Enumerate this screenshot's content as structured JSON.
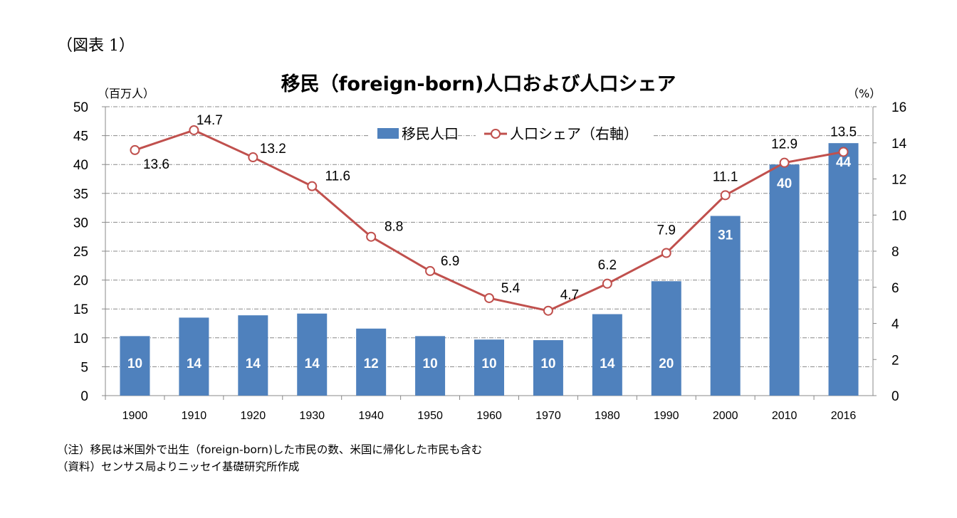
{
  "figure_label": "（図表 1）",
  "notes": [
    "（注）移民は米国外で出生（foreign-born)した市民の数、米国に帰化した市民も含む",
    "（資料）センサス局よりニッセイ基礎研究所作成"
  ],
  "chart_data": {
    "type": "bar+line",
    "title": "移民（foreign-born)人口および人口シェア",
    "ylabel_left": "（百万人）",
    "ylabel_right": "（%）",
    "ylim_left": [
      0,
      50
    ],
    "yticks_left": [
      0,
      5,
      10,
      15,
      20,
      25,
      30,
      35,
      40,
      45,
      50
    ],
    "ylim_right": [
      0,
      16
    ],
    "yticks_right": [
      0,
      2,
      4,
      6,
      8,
      10,
      12,
      14,
      16
    ],
    "grid": true,
    "legend_placement": "top-center",
    "categories": [
      "1900",
      "1910",
      "1920",
      "1930",
      "1940",
      "1950",
      "1960",
      "1970",
      "1980",
      "1990",
      "2000",
      "2010",
      "2016"
    ],
    "series": [
      {
        "name": "移民人口",
        "type": "bar",
        "axis": "left",
        "color": "#4F81BD",
        "values": [
          10.3,
          13.5,
          13.9,
          14.2,
          11.6,
          10.3,
          9.7,
          9.6,
          14.1,
          19.8,
          31.1,
          40.0,
          43.7
        ],
        "labels": [
          "10",
          "14",
          "14",
          "14",
          "12",
          "10",
          "10",
          "10",
          "14",
          "20",
          "31",
          "40",
          "44"
        ]
      },
      {
        "name": "人口シェア（右軸）",
        "type": "line",
        "axis": "right",
        "color": "#C0504D",
        "values": [
          13.6,
          14.7,
          13.2,
          11.6,
          8.8,
          6.9,
          5.4,
          4.7,
          6.2,
          7.9,
          11.1,
          12.9,
          13.5
        ],
        "labels": [
          "13.6",
          "14.7",
          "13.2",
          "11.6",
          "8.8",
          "6.9",
          "5.4",
          "4.7",
          "6.2",
          "7.9",
          "11.1",
          "12.9",
          "13.5"
        ]
      }
    ]
  }
}
